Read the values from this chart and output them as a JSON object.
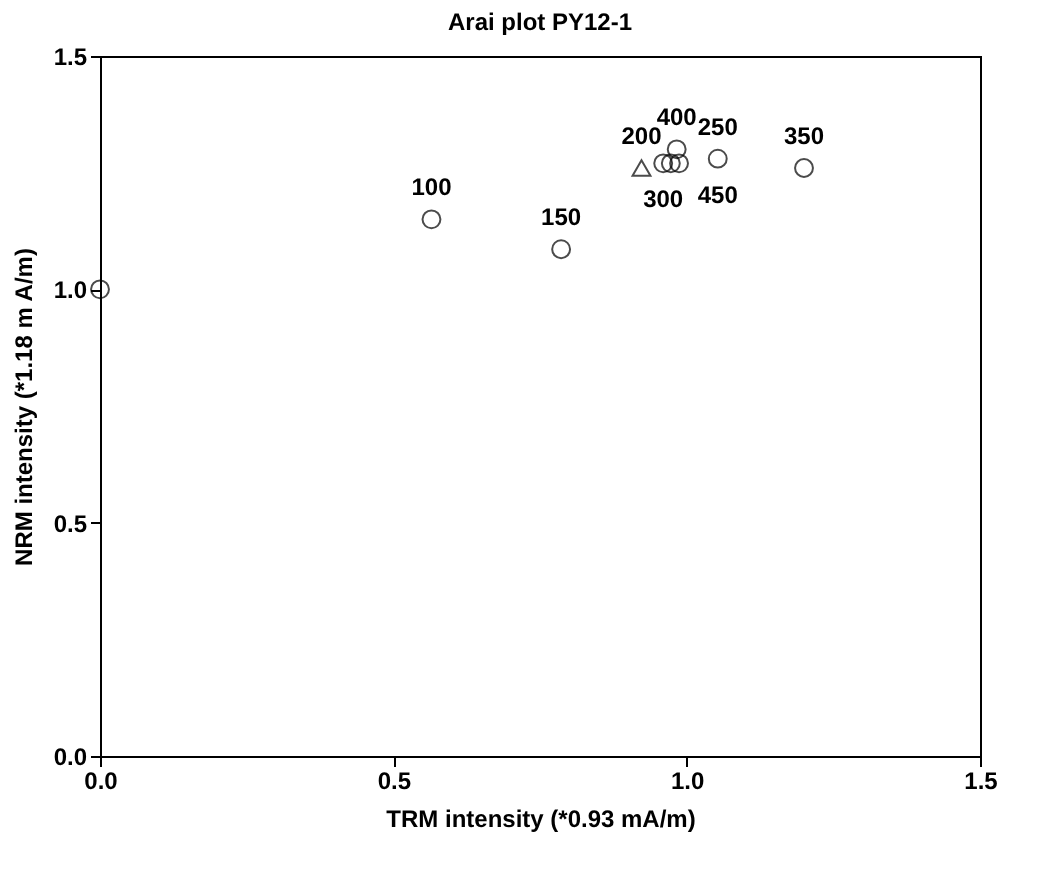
{
  "chart_data": {
    "type": "scatter",
    "title": "Arai plot PY12-1",
    "xlabel": "TRM intensity (*0.93 mA/m)",
    "ylabel": "NRM intensity (*1.18 m A/m)",
    "series": [
      {
        "color": "#000000",
        "marker": "circle",
        "x": [
          0,
          0.565,
          0.786,
          0.96,
          0.973,
          0.987,
          0.983,
          1.053,
          1.2
        ],
        "values": [
          1.0,
          1.15,
          1.086,
          1.27,
          1.27,
          1.27,
          1.3,
          1.28,
          1.26
        ]
      },
      {
        "color": "#000000",
        "marker": "triangle",
        "x": [
          0.923
        ],
        "values": [
          1.26
        ]
      }
    ],
    "annotations": [
      {
        "text": "100",
        "x": 0.565,
        "y": 1.15
      },
      {
        "text": "150",
        "x": 0.786,
        "y": 1.086
      },
      {
        "text": "200",
        "x": 0.923,
        "y": 1.26
      },
      {
        "text": "300",
        "x": 0.96,
        "y": 1.27
      },
      {
        "text": "400",
        "x": 0.983,
        "y": 1.3
      },
      {
        "text": "250",
        "x": 1.053,
        "y": 1.28
      },
      {
        "text": "450",
        "x": 1.053,
        "y": 1.28
      },
      {
        "text": "350",
        "x": 1.2,
        "y": 1.26
      }
    ],
    "xlim": [
      0,
      1.5
    ],
    "ylim": [
      0,
      1.5
    ],
    "xticks": [
      {
        "value": 0,
        "label": "0.0"
      },
      0.5,
      {
        "value": 1,
        "label": "1.0"
      },
      1.5
    ],
    "yticks": [
      {
        "value": 0,
        "label": "0.0"
      },
      0.5,
      {
        "value": 1,
        "label": "1.0"
      },
      1.5
    ],
    "grid": false
  }
}
